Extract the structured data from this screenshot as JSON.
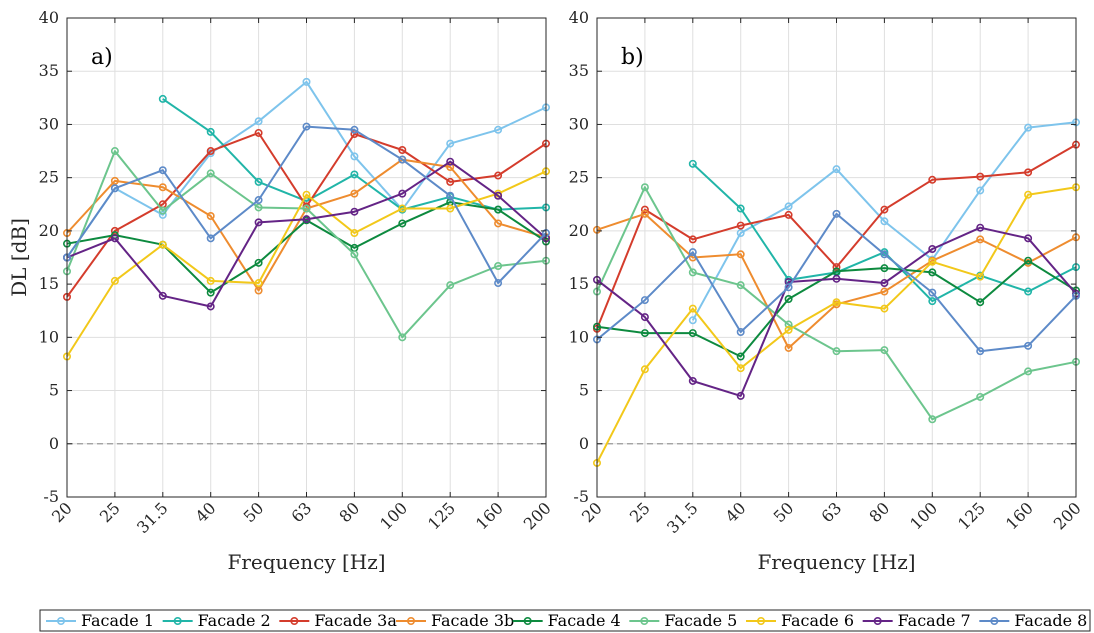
{
  "figure": {
    "ylabel": "DL [dB]",
    "xlabel": "Frequency [Hz]",
    "zero_line": {
      "value": 0,
      "style": "dashed",
      "color": "#999999"
    }
  },
  "chart_data": [
    {
      "type": "line",
      "panel_label": "a)",
      "xlabel": "Frequency [Hz]",
      "ylabel": "DL [dB]",
      "ylim": [
        -5,
        40
      ],
      "yticks": [
        -5,
        0,
        5,
        10,
        15,
        20,
        25,
        30,
        35,
        40
      ],
      "categories": [
        "20",
        "25",
        "31.5",
        "40",
        "50",
        "63",
        "80",
        "100",
        "125",
        "160",
        "200"
      ],
      "series": [
        {
          "name": "Facade 1",
          "color": "#7ec4ec",
          "values": [
            17.5,
            24,
            21.5,
            27.3,
            30.3,
            34,
            27,
            22,
            28.2,
            29.5,
            31.6
          ]
        },
        {
          "name": "Facade 2",
          "color": "#21b5a8",
          "values": [
            null,
            null,
            32.4,
            29.3,
            24.6,
            22.8,
            25.3,
            22,
            23.2,
            22,
            22.2
          ]
        },
        {
          "name": "Facade 3a",
          "color": "#d43c2c",
          "values": [
            13.8,
            20,
            22.5,
            27.5,
            29.2,
            22.3,
            29.1,
            27.6,
            24.6,
            25.2,
            28.2
          ]
        },
        {
          "name": "Facade 3b",
          "color": "#ee8c2f",
          "values": [
            19.8,
            24.7,
            24.1,
            21.4,
            14.4,
            22.1,
            23.5,
            26.7,
            26,
            20.7,
            19.4
          ]
        },
        {
          "name": "Facade 4",
          "color": "#0d8a3f",
          "values": [
            18.8,
            19.6,
            18.7,
            14.2,
            17,
            21,
            18.4,
            20.7,
            22.7,
            22,
            19
          ]
        },
        {
          "name": "Facade 5",
          "color": "#6cc58d",
          "values": [
            16.2,
            27.5,
            21.9,
            25.4,
            22.2,
            22.1,
            17.8,
            10,
            14.9,
            16.7,
            17.2
          ]
        },
        {
          "name": "Facade 6",
          "color": "#f2c81a",
          "values": [
            8.2,
            15.3,
            18.7,
            15.3,
            15.1,
            23.4,
            19.8,
            22.1,
            22.1,
            23.5,
            25.6
          ]
        },
        {
          "name": "Facade 7",
          "color": "#642486",
          "values": [
            17.5,
            19.3,
            13.9,
            12.9,
            20.8,
            21.1,
            21.8,
            23.5,
            26.5,
            23.3,
            19.3
          ]
        },
        {
          "name": "Facade 8",
          "color": "#5d8ac8",
          "values": [
            17.5,
            24,
            25.7,
            19.3,
            22.9,
            29.8,
            29.5,
            26.7,
            23.3,
            15.1,
            19.8
          ]
        }
      ]
    },
    {
      "type": "line",
      "panel_label": "b)",
      "xlabel": "Frequency [Hz]",
      "ylabel": "",
      "ylim": [
        -5,
        40
      ],
      "yticks": [
        -5,
        0,
        5,
        10,
        15,
        20,
        25,
        30,
        35,
        40
      ],
      "categories": [
        "20",
        "25",
        "31.5",
        "40",
        "50",
        "63",
        "80",
        "100",
        "125",
        "160",
        "200"
      ],
      "series": [
        {
          "name": "Facade 1",
          "color": "#7ec4ec",
          "values": [
            null,
            null,
            11.6,
            19.8,
            22.3,
            25.8,
            20.9,
            17.3,
            23.8,
            29.7,
            30.2
          ]
        },
        {
          "name": "Facade 2",
          "color": "#21b5a8",
          "values": [
            null,
            null,
            26.3,
            22.1,
            15.4,
            16.1,
            18,
            13.4,
            15.8,
            14.3,
            16.6
          ]
        },
        {
          "name": "Facade 3a",
          "color": "#d43c2c",
          "values": [
            10.8,
            22,
            19.2,
            20.5,
            21.5,
            16.6,
            22,
            24.8,
            25.1,
            25.5,
            28.1
          ]
        },
        {
          "name": "Facade 3b",
          "color": "#ee8c2f",
          "values": [
            20.1,
            21.6,
            17.5,
            17.8,
            9,
            13.1,
            14.3,
            17.2,
            19.2,
            17,
            19.4
          ]
        },
        {
          "name": "Facade 4",
          "color": "#0d8a3f",
          "values": [
            11,
            10.4,
            10.4,
            8.2,
            13.6,
            16.2,
            16.5,
            16.1,
            13.3,
            17.2,
            14.4
          ]
        },
        {
          "name": "Facade 5",
          "color": "#6cc58d",
          "values": [
            14.3,
            24.1,
            16.1,
            14.9,
            11.2,
            8.7,
            8.8,
            2.3,
            4.4,
            6.8,
            7.7
          ]
        },
        {
          "name": "Facade 6",
          "color": "#f2c81a",
          "values": [
            -1.8,
            7,
            12.7,
            7.1,
            10.7,
            13.3,
            12.7,
            17.1,
            15.7,
            23.4,
            24.1
          ]
        },
        {
          "name": "Facade 7",
          "color": "#642486",
          "values": [
            15.4,
            11.9,
            5.9,
            4.5,
            15.2,
            15.5,
            15.1,
            18.3,
            20.3,
            19.3,
            14.1
          ]
        },
        {
          "name": "Facade 8",
          "color": "#5d8ac8",
          "values": [
            9.8,
            13.5,
            18,
            10.5,
            14.7,
            21.6,
            17.8,
            14.2,
            8.7,
            9.2,
            13.9
          ]
        }
      ]
    }
  ]
}
